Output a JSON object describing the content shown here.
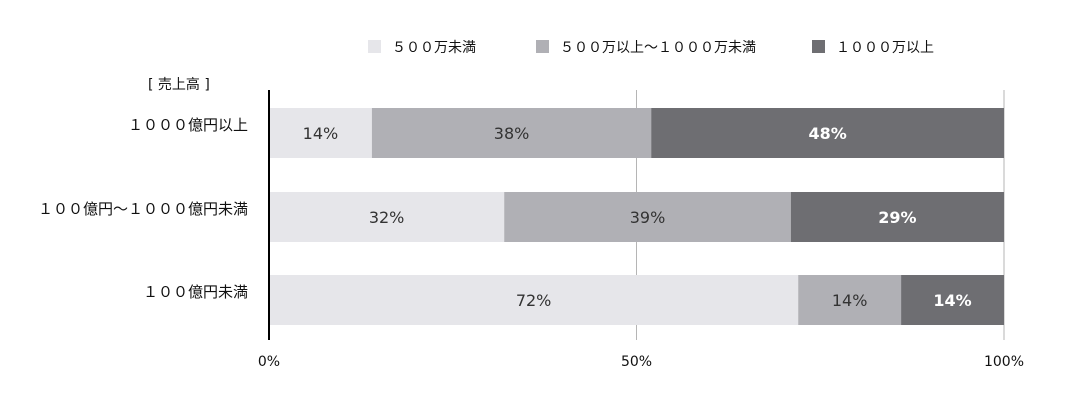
{
  "chart_data": {
    "type": "bar",
    "orientation": "horizontal",
    "stacked": true,
    "normalized_percent": true,
    "y_group_label": "[ 売上高 ]",
    "categories": [
      "１０００億円以上",
      "１００億円～１０００億円未満",
      "１００億円未満"
    ],
    "series": [
      {
        "name": "５００万未満",
        "color": "#e6e6ea",
        "values": [
          14,
          32,
          72
        ],
        "labels": [
          "14%",
          "32%",
          "72%"
        ]
      },
      {
        "name": "５００万以上～１０００万未満",
        "color": "#b0b0b5",
        "values": [
          38,
          39,
          14
        ],
        "labels": [
          "38%",
          "39%",
          "14%"
        ]
      },
      {
        "name": "１０００万以上",
        "color": "#6e6e72",
        "values": [
          48,
          29,
          14
        ],
        "labels": [
          "48%",
          "29%",
          "14%"
        ]
      }
    ],
    "xlim": [
      0,
      100
    ],
    "xticks": [
      0,
      50,
      100
    ],
    "xtick_labels": [
      "0%",
      "50%",
      "100%"
    ],
    "legend_position": "top",
    "grid": true
  }
}
